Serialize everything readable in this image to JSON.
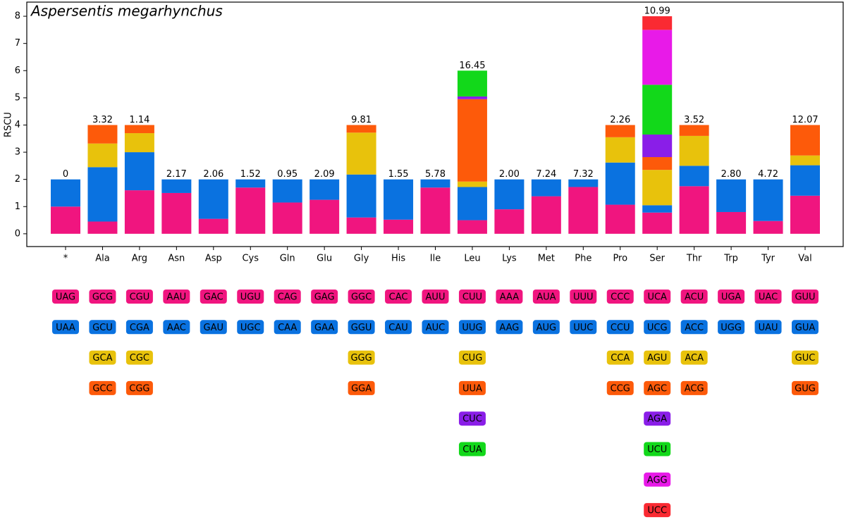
{
  "chart_data": {
    "type": "stacked_bar",
    "title": "Aspersentis megarhynchus",
    "y_label": "RSCU",
    "categories": [
      "*",
      "Ala",
      "Arg",
      "Asn",
      "Asp",
      "Cys",
      "Gln",
      "Glu",
      "Gly",
      "His",
      "Ile",
      "Leu",
      "Lys",
      "Met",
      "Phe",
      "Pro",
      "Ser",
      "Thr",
      "Trp",
      "Tyr",
      "Val"
    ],
    "annotations": [
      "0",
      "3.32",
      "1.14",
      "2.17",
      "2.06",
      "1.52",
      "0.95",
      "2.09",
      "9.81",
      "1.55",
      "5.78",
      "16.45",
      "2.00",
      "7.24",
      "7.32",
      "2.26",
      "10.99",
      "3.52",
      "2.80",
      "4.72",
      "12.07"
    ],
    "ylim": [
      -0.47,
      8.52
    ],
    "yticks": [
      0,
      1,
      2,
      3,
      4,
      5,
      6,
      7,
      8
    ],
    "series": [
      {
        "color": "#f0157f",
        "values": [
          1.0,
          0.45,
          1.6,
          1.5,
          0.55,
          1.7,
          1.15,
          1.25,
          0.6,
          0.52,
          1.7,
          0.5,
          0.9,
          1.38,
          1.72,
          1.07,
          0.78,
          1.75,
          0.8,
          0.47,
          1.4
        ],
        "codons": [
          "UAG",
          "GCG",
          "CGU",
          "AAU",
          "GAC",
          "UGU",
          "CAG",
          "GAG",
          "GGC",
          "CAC",
          "AUU",
          "CUU",
          "AAA",
          "AUA",
          "UUU",
          "CCC",
          "UCA",
          "ACU",
          "UGA",
          "UAC",
          "GUU"
        ]
      },
      {
        "color": "#0a72e0",
        "values": [
          1.0,
          2.0,
          1.4,
          0.5,
          1.45,
          0.3,
          0.85,
          0.75,
          1.58,
          1.48,
          0.3,
          1.22,
          1.1,
          0.62,
          0.28,
          1.55,
          0.27,
          0.75,
          1.2,
          1.53,
          1.12
        ],
        "codons": [
          "UAA",
          "GCU",
          "CGA",
          "AAC",
          "GAU",
          "UGC",
          "CAA",
          "GAA",
          "GGU",
          "CAU",
          "AUC",
          "UUG",
          "AAG",
          "AUG",
          "UUC",
          "CCU",
          "UCG",
          "ACC",
          "UGG",
          "UAU",
          "GUA"
        ]
      },
      {
        "color": "#e8c20c",
        "values": [
          null,
          0.87,
          0.7,
          null,
          null,
          null,
          null,
          null,
          1.54,
          null,
          null,
          0.2,
          null,
          null,
          null,
          0.93,
          1.3,
          1.1,
          null,
          null,
          0.36
        ],
        "codons": [
          null,
          "GCA",
          "CGC",
          null,
          null,
          null,
          null,
          null,
          "GGG",
          null,
          null,
          "CUG",
          null,
          null,
          null,
          "CCA",
          "AGU",
          "ACA",
          null,
          null,
          "GUC"
        ]
      },
      {
        "color": "#fd5a0a",
        "values": [
          null,
          0.68,
          0.3,
          null,
          null,
          null,
          null,
          null,
          0.28,
          null,
          null,
          3.03,
          null,
          null,
          null,
          0.45,
          0.47,
          0.4,
          null,
          null,
          1.12
        ],
        "codons": [
          null,
          "GCC",
          "CGG",
          null,
          null,
          null,
          null,
          null,
          "GGA",
          null,
          null,
          "UUA",
          null,
          null,
          null,
          "CCG",
          "AGC",
          "ACG",
          null,
          null,
          "GUG"
        ]
      },
      {
        "color": "#8a1ee8",
        "values": [
          null,
          null,
          null,
          null,
          null,
          null,
          null,
          null,
          null,
          null,
          null,
          0.1,
          null,
          null,
          null,
          null,
          0.83,
          null,
          null,
          null,
          null
        ],
        "codons": [
          null,
          null,
          null,
          null,
          null,
          null,
          null,
          null,
          null,
          null,
          null,
          "CUC",
          null,
          null,
          null,
          null,
          "AGA",
          null,
          null,
          null,
          null
        ]
      },
      {
        "color": "#12d81a",
        "values": [
          null,
          null,
          null,
          null,
          null,
          null,
          null,
          null,
          null,
          null,
          null,
          0.95,
          null,
          null,
          null,
          null,
          1.83,
          null,
          null,
          null,
          null
        ],
        "codons": [
          null,
          null,
          null,
          null,
          null,
          null,
          null,
          null,
          null,
          null,
          null,
          "CUA",
          null,
          null,
          null,
          null,
          "UCU",
          null,
          null,
          null,
          null
        ]
      },
      {
        "color": "#e81ae8",
        "values": [
          null,
          null,
          null,
          null,
          null,
          null,
          null,
          null,
          null,
          null,
          null,
          null,
          null,
          null,
          null,
          null,
          2.02,
          null,
          null,
          null,
          null
        ],
        "codons": [
          null,
          null,
          null,
          null,
          null,
          null,
          null,
          null,
          null,
          null,
          null,
          null,
          null,
          null,
          null,
          null,
          "AGG",
          null,
          null,
          null,
          null
        ]
      },
      {
        "color": "#fa2a32",
        "values": [
          null,
          null,
          null,
          null,
          null,
          null,
          null,
          null,
          null,
          null,
          null,
          null,
          null,
          null,
          null,
          null,
          0.5,
          null,
          null,
          null,
          null
        ],
        "codons": [
          null,
          null,
          null,
          null,
          null,
          null,
          null,
          null,
          null,
          null,
          null,
          null,
          null,
          null,
          null,
          null,
          "UCC",
          null,
          null,
          null,
          null
        ]
      }
    ]
  }
}
